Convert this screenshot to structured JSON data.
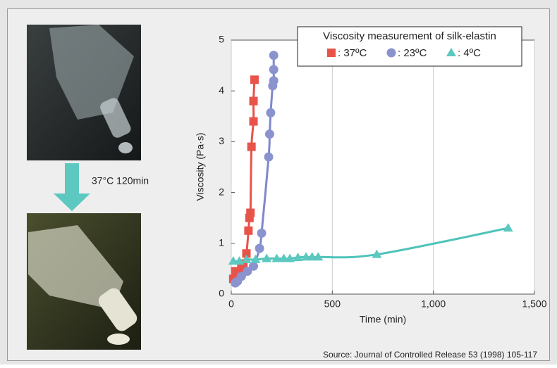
{
  "chart_data": {
    "type": "scatter",
    "x_label": "Time (min)",
    "y_label": "Viscosity (Pa·s)",
    "annotation": "37°C  120min",
    "source": "Source: Journal of Controlled Release 53 (1998) 105-117",
    "legend_title": "Viscosity measurement of silk-elastin",
    "legend_position": "top-right",
    "grid": "x",
    "xlim": [
      0,
      1500
    ],
    "ylim": [
      0,
      5
    ],
    "xticks": [
      0,
      500,
      {
        "value": 1000,
        "label": "1,000"
      },
      {
        "value": 1500,
        "label": "1,500"
      }
    ],
    "yticks": [
      0,
      1,
      2,
      3,
      4,
      5
    ],
    "series": [
      {
        "name": ": 37ºC",
        "color": "#e8534a",
        "line_color": "#e8534a",
        "marker": "square",
        "x": [
          10,
          20,
          35,
          50,
          60,
          75,
          85,
          90,
          95,
          100,
          110,
          110,
          115
        ],
        "values": [
          0.3,
          0.45,
          0.4,
          0.5,
          0.6,
          0.8,
          1.25,
          1.5,
          1.6,
          2.9,
          3.4,
          3.8,
          4.22
        ]
      },
      {
        "name": ": 23ºC",
        "color": "#8b93cf",
        "line_color": "#7f88cc",
        "marker": "circle",
        "x": [
          20,
          30,
          50,
          80,
          110,
          140,
          150,
          185,
          190,
          195,
          205,
          210,
          210,
          210
        ],
        "values": [
          0.22,
          0.25,
          0.35,
          0.45,
          0.55,
          0.9,
          1.2,
          2.7,
          3.15,
          3.57,
          4.1,
          4.2,
          4.42,
          4.7
        ]
      },
      {
        "name": ": 4ºC",
        "color": "#5cc8c0",
        "line_color": "#4fc3ba",
        "marker": "triangle",
        "x": [
          10,
          40,
          75,
          120,
          175,
          225,
          260,
          290,
          330,
          370,
          400,
          430,
          720,
          1370
        ],
        "values": [
          0.65,
          0.65,
          0.68,
          0.68,
          0.7,
          0.7,
          0.7,
          0.7,
          0.72,
          0.73,
          0.73,
          0.73,
          0.78,
          1.3
        ]
      }
    ]
  }
}
